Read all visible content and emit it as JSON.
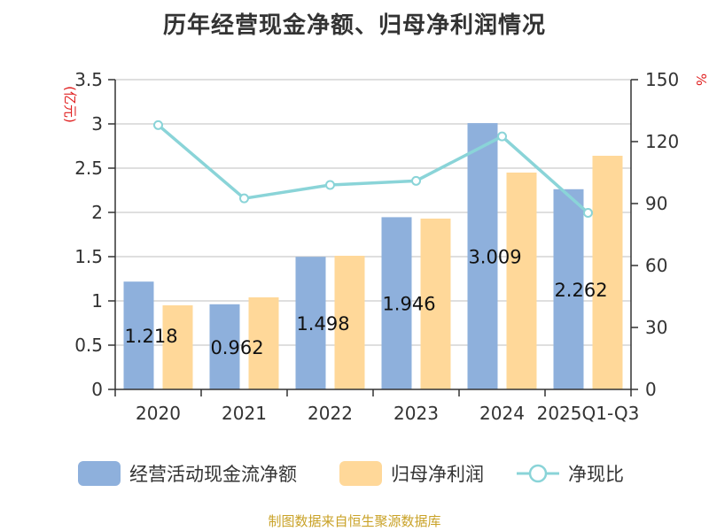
{
  "title": "历年经营现金净额、归母净利润情况",
  "source": "制图数据来自恒生聚源数据库",
  "chart_data": {
    "type": "bar",
    "categories": [
      "2020",
      "2021",
      "2022",
      "2023",
      "2024",
      "2025Q1-Q3"
    ],
    "series": [
      {
        "name": "经营活动现金流净额",
        "type": "bar",
        "axis": "left",
        "color": "#8eb0dc",
        "values": [
          1.218,
          0.962,
          1.498,
          1.946,
          3.009,
          2.262
        ],
        "labels": [
          "1.218",
          "0.962",
          "1.498",
          "1.946",
          "3.009",
          "2.262"
        ]
      },
      {
        "name": "归母净利润",
        "type": "bar",
        "axis": "left",
        "color": "#ffd899",
        "values": [
          0.95,
          1.04,
          1.51,
          1.93,
          2.45,
          2.64
        ]
      },
      {
        "name": "净现比",
        "type": "line",
        "axis": "right",
        "color": "#8ad4d8",
        "values": [
          128,
          92.5,
          99,
          101,
          122.5,
          85.5
        ]
      }
    ],
    "y_left": {
      "unit": "(亿元)",
      "min": 0,
      "max": 3.5,
      "ticks": [
        0,
        0.5,
        1,
        1.5,
        2,
        2.5,
        3,
        3.5
      ],
      "tick_labels": [
        "0",
        "0.5",
        "1",
        "1.5",
        "2",
        "2.5",
        "3",
        "3.5"
      ]
    },
    "y_right": {
      "unit": "%",
      "min": 0,
      "max": 150,
      "ticks": [
        0,
        30,
        60,
        90,
        120,
        150
      ],
      "tick_labels": [
        "0",
        "30",
        "60",
        "90",
        "120",
        "150"
      ]
    },
    "grid": true,
    "legend_position": "bottom"
  }
}
